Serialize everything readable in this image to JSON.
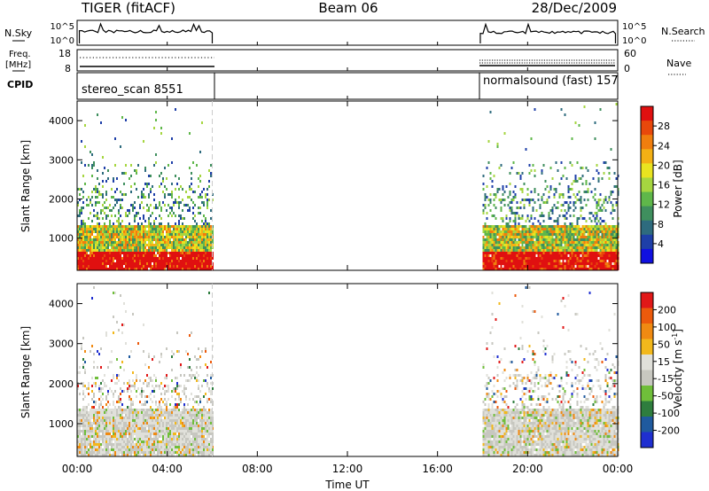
{
  "header": {
    "radar": "TIGER (fitACF)",
    "beam": "Beam 06",
    "date": "28/Dec/2009"
  },
  "panels": {
    "nsky_label": "N.Sky",
    "nsky_ticks": [
      "10^5",
      "10^0"
    ],
    "nsearch_label": "N.Search",
    "freq_label_1": "Freq.",
    "freq_label_2": "[MHz]",
    "freq_ticks": [
      "18",
      "8"
    ],
    "nave_label": "Nave",
    "nave_ticks": [
      "60",
      "0"
    ],
    "cpid_label": "CPID",
    "cpid_1": "stereo_scan 8551",
    "cpid_2": "normalsound (fast) 157"
  },
  "colors": {
    "power": [
      "#1010e0",
      "#1e3fa8",
      "#2e6b7e",
      "#3f8f5e",
      "#5fb74a",
      "#a6d640",
      "#e9e320",
      "#f3b015",
      "#f07e0e",
      "#e8480b",
      "#e01010"
    ],
    "velocity": [
      "#1f2fd0",
      "#1f5a9e",
      "#2e7d3e",
      "#6fbe3a",
      "#c7c7c0",
      "#e0e0da",
      "#f2b81c",
      "#f08a12",
      "#ec5a0c",
      "#e11818"
    ]
  },
  "chart_data": [
    {
      "type": "heatmap",
      "name": "power",
      "xlabel": "Time UT",
      "ylabel": "Slant Range [km]",
      "xticks": [
        "00:00",
        "04:00",
        "08:00",
        "12:00",
        "16:00",
        "20:00",
        "00:00"
      ],
      "x_hours": [
        0,
        4,
        8,
        12,
        16,
        20,
        24
      ],
      "yticks": [
        "1000",
        "2000",
        "3000",
        "4000"
      ],
      "ytick_values": [
        1000,
        2000,
        3000,
        4000
      ],
      "ylim": [
        180,
        4500
      ],
      "colorbar_label": "Power [dB]",
      "colorbar_ticks": [
        "4",
        "8",
        "12",
        "16",
        "20",
        "24",
        "28"
      ],
      "colorbar_tick_values": [
        4,
        8,
        12,
        16,
        20,
        24,
        28
      ],
      "colorbar_range": [
        0,
        32
      ],
      "data_intervals_hours": [
        [
          0,
          6
        ],
        [
          18,
          24
        ]
      ]
    },
    {
      "type": "heatmap",
      "name": "velocity",
      "xlabel": "Time UT",
      "ylabel": "Slant Range [km]",
      "xticks": [
        "00:00",
        "04:00",
        "08:00",
        "12:00",
        "16:00",
        "20:00",
        "00:00"
      ],
      "x_hours": [
        0,
        4,
        8,
        12,
        16,
        20,
        24
      ],
      "yticks": [
        "1000",
        "2000",
        "3000",
        "4000"
      ],
      "ytick_values": [
        1000,
        2000,
        3000,
        4000
      ],
      "ylim": [
        180,
        4500
      ],
      "colorbar_label": "Velocity [m s",
      "colorbar_label_sup": "-1",
      "colorbar_label_end": "]",
      "colorbar_ticks": [
        "200",
        "100",
        "50",
        "15",
        "-15",
        "-50",
        "-100",
        "-200"
      ],
      "data_intervals_hours": [
        [
          0,
          6
        ],
        [
          18,
          24
        ]
      ]
    }
  ]
}
